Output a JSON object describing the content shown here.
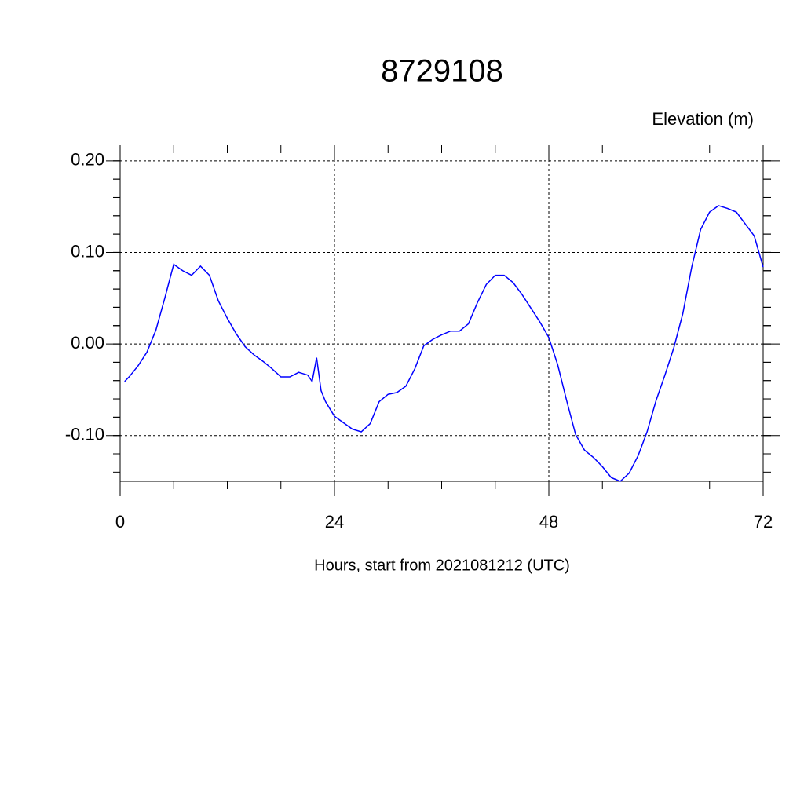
{
  "chart_data": {
    "type": "line",
    "title": "8729108",
    "subtitle": "Elevation (m)",
    "x_label": "Hours, start from 2021081212 (UTC)",
    "x": [
      0.5,
      1,
      2,
      3,
      4,
      5,
      6,
      7,
      8,
      9,
      10,
      11,
      12,
      13,
      14,
      15,
      16,
      17,
      18,
      19,
      20,
      21,
      21.5,
      22,
      22.5,
      23,
      24,
      25,
      26,
      27,
      28,
      29,
      30,
      31,
      32,
      33,
      34,
      35,
      36,
      37,
      38,
      39,
      40,
      41,
      42,
      43,
      44,
      45,
      46,
      47,
      48,
      49,
      50,
      51,
      52,
      53,
      54,
      55,
      56,
      57,
      58,
      59,
      60,
      61,
      62,
      63,
      64,
      65,
      66,
      67,
      68,
      69,
      70,
      71,
      72
    ],
    "values": [
      -0.041,
      -0.036,
      -0.024,
      -0.009,
      0.015,
      0.05,
      0.087,
      0.08,
      0.075,
      0.085,
      0.075,
      0.047,
      0.028,
      0.011,
      -0.003,
      -0.012,
      -0.019,
      -0.027,
      -0.036,
      -0.036,
      -0.031,
      -0.034,
      -0.041,
      -0.015,
      -0.051,
      -0.063,
      -0.079,
      -0.086,
      -0.093,
      -0.096,
      -0.087,
      -0.063,
      -0.055,
      -0.053,
      -0.046,
      -0.027,
      -0.002,
      0.005,
      0.01,
      0.014,
      0.014,
      0.022,
      0.045,
      0.065,
      0.075,
      0.075,
      0.067,
      0.054,
      0.039,
      0.024,
      0.007,
      -0.023,
      -0.062,
      -0.099,
      -0.116,
      -0.124,
      -0.134,
      -0.146,
      -0.15,
      -0.141,
      -0.122,
      -0.096,
      -0.062,
      -0.034,
      -0.004,
      0.033,
      0.084,
      0.125,
      0.144,
      0.151,
      0.148,
      0.144,
      0.131,
      0.118,
      0.084
    ],
    "color": "#0000ff",
    "xlim": [
      0,
      72
    ],
    "xticks": [
      0,
      24,
      48,
      72
    ],
    "ylim": [
      -0.15,
      0.217
    ],
    "yticks": [
      {
        "value": -0.1,
        "label": "-0.10"
      },
      {
        "value": 0,
        "label": "0.00"
      },
      {
        "value": 0.1,
        "label": "0.10"
      },
      {
        "value": 0.2,
        "label": "0.20"
      }
    ],
    "grid": true
  }
}
